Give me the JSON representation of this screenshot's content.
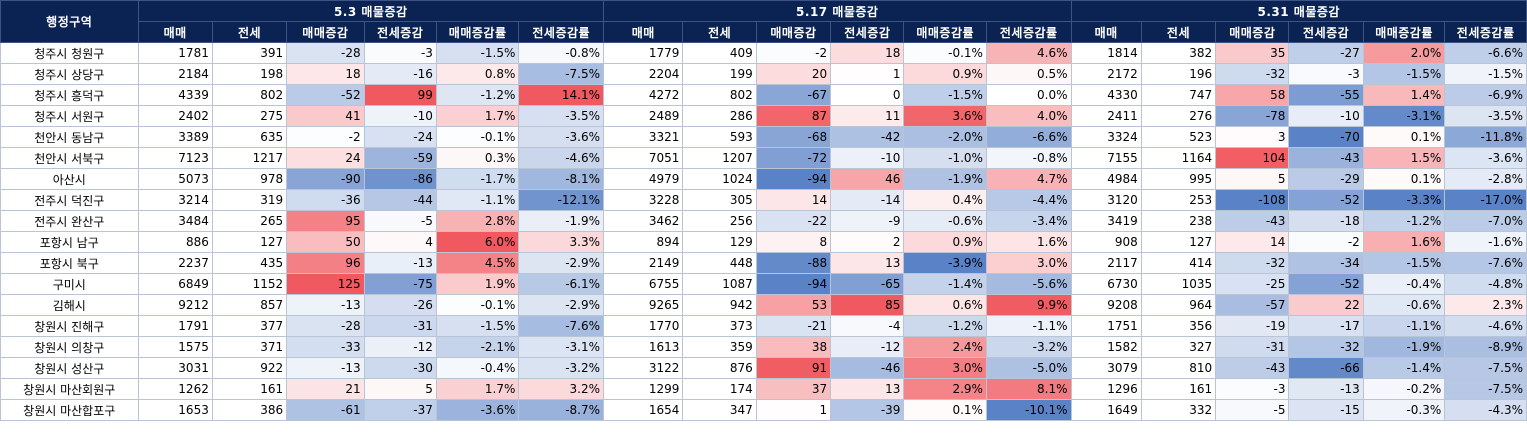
{
  "region_header": "행정구역",
  "periods": [
    "5.3 매물증감",
    "5.17 매물증감",
    "5.31 매물증감"
  ],
  "subheaders": [
    "매매",
    "전세",
    "매매증감",
    "전세증감",
    "매매증감률",
    "전세증감률"
  ],
  "colors": {
    "header_bg": "#0b2352",
    "negative": "#5a82c6",
    "positive": "#f0595f"
  },
  "rows": [
    {
      "region": "청주시 청원구",
      "p": [
        [
          "1781",
          "391",
          "-28",
          "-3",
          "-1.5%",
          "-0.8%"
        ],
        [
          "1779",
          "409",
          "-2",
          "18",
          "-0.1%",
          "4.6%"
        ],
        [
          "1814",
          "382",
          "35",
          "-27",
          "2.0%",
          "-6.6%"
        ]
      ]
    },
    {
      "region": "청주시 상당구",
      "p": [
        [
          "2184",
          "198",
          "18",
          "-16",
          "0.8%",
          "-7.5%"
        ],
        [
          "2204",
          "199",
          "20",
          "1",
          "0.9%",
          "0.5%"
        ],
        [
          "2172",
          "196",
          "-32",
          "-3",
          "-1.5%",
          "-1.5%"
        ]
      ]
    },
    {
      "region": "청주시 흥덕구",
      "p": [
        [
          "4339",
          "802",
          "-52",
          "99",
          "-1.2%",
          "14.1%"
        ],
        [
          "4272",
          "802",
          "-67",
          "0",
          "-1.5%",
          "0.0%"
        ],
        [
          "4330",
          "747",
          "58",
          "-55",
          "1.4%",
          "-6.9%"
        ]
      ]
    },
    {
      "region": "청주시 서원구",
      "p": [
        [
          "2402",
          "275",
          "41",
          "-10",
          "1.7%",
          "-3.5%"
        ],
        [
          "2489",
          "286",
          "87",
          "11",
          "3.6%",
          "4.0%"
        ],
        [
          "2411",
          "276",
          "-78",
          "-10",
          "-3.1%",
          "-3.5%"
        ]
      ]
    },
    {
      "region": "천안시 동남구",
      "p": [
        [
          "3389",
          "635",
          "-2",
          "-24",
          "-0.1%",
          "-3.6%"
        ],
        [
          "3321",
          "593",
          "-68",
          "-42",
          "-2.0%",
          "-6.6%"
        ],
        [
          "3324",
          "523",
          "3",
          "-70",
          "0.1%",
          "-11.8%"
        ]
      ]
    },
    {
      "region": "천안시 서북구",
      "p": [
        [
          "7123",
          "1217",
          "24",
          "-59",
          "0.3%",
          "-4.6%"
        ],
        [
          "7051",
          "1207",
          "-72",
          "-10",
          "-1.0%",
          "-0.8%"
        ],
        [
          "7155",
          "1164",
          "104",
          "-43",
          "1.5%",
          "-3.6%"
        ]
      ]
    },
    {
      "region": "아산시",
      "p": [
        [
          "5073",
          "978",
          "-90",
          "-86",
          "-1.7%",
          "-8.1%"
        ],
        [
          "4979",
          "1024",
          "-94",
          "46",
          "-1.9%",
          "4.7%"
        ],
        [
          "4984",
          "995",
          "5",
          "-29",
          "0.1%",
          "-2.8%"
        ]
      ]
    },
    {
      "region": "전주시 덕진구",
      "p": [
        [
          "3214",
          "319",
          "-36",
          "-44",
          "-1.1%",
          "-12.1%"
        ],
        [
          "3228",
          "305",
          "14",
          "-14",
          "0.4%",
          "-4.4%"
        ],
        [
          "3120",
          "253",
          "-108",
          "-52",
          "-3.3%",
          "-17.0%"
        ]
      ]
    },
    {
      "region": "전주시 완산구",
      "p": [
        [
          "3484",
          "265",
          "95",
          "-5",
          "2.8%",
          "-1.9%"
        ],
        [
          "3462",
          "256",
          "-22",
          "-9",
          "-0.6%",
          "-3.4%"
        ],
        [
          "3419",
          "238",
          "-43",
          "-18",
          "-1.2%",
          "-7.0%"
        ]
      ]
    },
    {
      "region": "포항시 남구",
      "p": [
        [
          "886",
          "127",
          "50",
          "4",
          "6.0%",
          "3.3%"
        ],
        [
          "894",
          "129",
          "8",
          "2",
          "0.9%",
          "1.6%"
        ],
        [
          "908",
          "127",
          "14",
          "-2",
          "1.6%",
          "-1.6%"
        ]
      ]
    },
    {
      "region": "포항시 북구",
      "p": [
        [
          "2237",
          "435",
          "96",
          "-13",
          "4.5%",
          "-2.9%"
        ],
        [
          "2149",
          "448",
          "-88",
          "13",
          "-3.9%",
          "3.0%"
        ],
        [
          "2117",
          "414",
          "-32",
          "-34",
          "-1.5%",
          "-7.6%"
        ]
      ]
    },
    {
      "region": "구미시",
      "p": [
        [
          "6849",
          "1152",
          "125",
          "-75",
          "1.9%",
          "-6.1%"
        ],
        [
          "6755",
          "1087",
          "-94",
          "-65",
          "-1.4%",
          "-5.6%"
        ],
        [
          "6730",
          "1035",
          "-25",
          "-52",
          "-0.4%",
          "-4.8%"
        ]
      ]
    },
    {
      "region": "김해시",
      "p": [
        [
          "9212",
          "857",
          "-13",
          "-26",
          "-0.1%",
          "-2.9%"
        ],
        [
          "9265",
          "942",
          "53",
          "85",
          "0.6%",
          "9.9%"
        ],
        [
          "9208",
          "964",
          "-57",
          "22",
          "-0.6%",
          "2.3%"
        ]
      ]
    },
    {
      "region": "창원시 진해구",
      "p": [
        [
          "1791",
          "377",
          "-28",
          "-31",
          "-1.5%",
          "-7.6%"
        ],
        [
          "1770",
          "373",
          "-21",
          "-4",
          "-1.2%",
          "-1.1%"
        ],
        [
          "1751",
          "356",
          "-19",
          "-17",
          "-1.1%",
          "-4.6%"
        ]
      ]
    },
    {
      "region": "창원시 의창구",
      "p": [
        [
          "1575",
          "371",
          "-33",
          "-12",
          "-2.1%",
          "-3.1%"
        ],
        [
          "1613",
          "359",
          "38",
          "-12",
          "2.4%",
          "-3.2%"
        ],
        [
          "1582",
          "327",
          "-31",
          "-32",
          "-1.9%",
          "-8.9%"
        ]
      ]
    },
    {
      "region": "창원시 성산구",
      "p": [
        [
          "3031",
          "922",
          "-13",
          "-30",
          "-0.4%",
          "-3.2%"
        ],
        [
          "3122",
          "876",
          "91",
          "-46",
          "3.0%",
          "-5.0%"
        ],
        [
          "3079",
          "810",
          "-43",
          "-66",
          "-1.4%",
          "-7.5%"
        ]
      ]
    },
    {
      "region": "창원시 마산회원구",
      "p": [
        [
          "1262",
          "161",
          "21",
          "5",
          "1.7%",
          "3.2%"
        ],
        [
          "1299",
          "174",
          "37",
          "13",
          "2.9%",
          "8.1%"
        ],
        [
          "1296",
          "161",
          "-3",
          "-13",
          "-0.2%",
          "-7.5%"
        ]
      ]
    },
    {
      "region": "창원시 마산합포구",
      "p": [
        [
          "1653",
          "386",
          "-61",
          "-37",
          "-3.6%",
          "-8.7%"
        ],
        [
          "1654",
          "347",
          "1",
          "-39",
          "0.1%",
          "-10.1%"
        ],
        [
          "1649",
          "332",
          "-5",
          "-15",
          "-0.3%",
          "-4.3%"
        ]
      ]
    }
  ]
}
